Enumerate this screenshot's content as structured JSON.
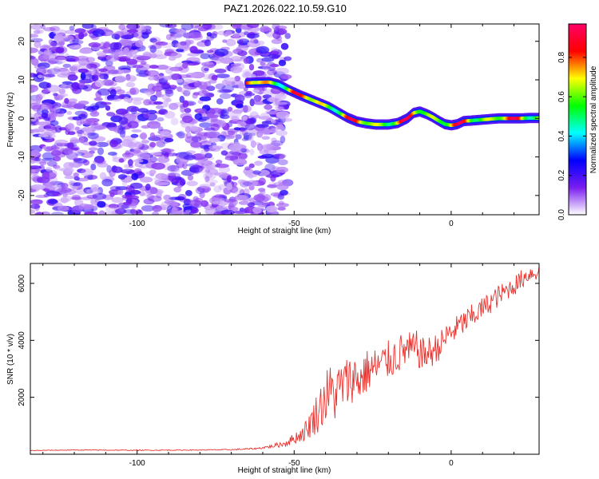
{
  "title": "PAZ1.2026.022.10.59.G10",
  "chart_data": [
    {
      "type": "heatmap",
      "panel": "spectrogram",
      "xlabel": "Height of straight line (km)",
      "ylabel": "Frequency (Hz)",
      "xlim": [
        -134,
        28
      ],
      "ylim": [
        -25,
        24.5
      ],
      "x_ticks": [
        -100,
        -50,
        0
      ],
      "x_tick_labels": [
        "-100",
        "-50",
        "0"
      ],
      "y_ticks": [
        -20,
        -10,
        0,
        10,
        20
      ],
      "y_tick_labels": [
        "-20",
        "-10",
        "0",
        "10",
        "20"
      ],
      "noise_region_x": [
        -134,
        -52
      ],
      "noise_amplitude_range": [
        0.0,
        0.2
      ],
      "ridge_amplitude_range": [
        0.4,
        0.95
      ],
      "ridge": {
        "height_km": [
          -65,
          -62,
          -58,
          -55,
          -52,
          -48,
          -45,
          -42,
          -39,
          -36,
          -33,
          -30,
          -27,
          -24,
          -20,
          -17,
          -14,
          -12,
          -10,
          -8,
          -6,
          -4,
          -2,
          0,
          2,
          4,
          6,
          9,
          12,
          15,
          18,
          22,
          25,
          28
        ],
        "frequency_hz": [
          9.2,
          9.3,
          9.4,
          8.8,
          7.5,
          6.0,
          5.0,
          4.0,
          3.0,
          1.6,
          0.2,
          -0.8,
          -1.3,
          -1.6,
          -1.6,
          -1.2,
          0.0,
          1.4,
          1.8,
          1.2,
          0.4,
          -0.6,
          -1.5,
          -1.8,
          -1.5,
          -0.7,
          -0.6,
          -0.4,
          -0.2,
          0.0,
          0.0,
          0.0,
          0.1,
          0.1
        ]
      },
      "colorbar": {
        "label": "Normalized spectral amplitude",
        "range": [
          0.0,
          0.97
        ],
        "ticks": [
          0.0,
          0.2,
          0.4,
          0.6,
          0.8
        ],
        "tick_labels": [
          "0.0",
          "0.2",
          "0.4",
          "0.6",
          "0.8"
        ],
        "colors": [
          "#ffffff",
          "#7a1df0",
          "#0000ff",
          "#00ffff",
          "#00ff00",
          "#ffff00",
          "#ff0000",
          "#ff0066"
        ]
      }
    },
    {
      "type": "line",
      "panel": "snr",
      "xlabel": "Height of straight line (km)",
      "ylabel": "SNR (10 * v/v)",
      "xlim": [
        -134,
        28
      ],
      "ylim": [
        0,
        6700
      ],
      "x_ticks": [
        -100,
        -50,
        0
      ],
      "x_tick_labels": [
        "-100",
        "-50",
        "0"
      ],
      "y_ticks": [
        2000,
        4000,
        6000
      ],
      "y_tick_labels": [
        "2000",
        "4000",
        "6000"
      ],
      "line_color": "#e8322e",
      "series": [
        {
          "name": "SNR",
          "x": [
            -134,
            -120,
            -100,
            -80,
            -70,
            -62,
            -57,
            -53,
            -50,
            -47,
            -45,
            -43,
            -41,
            -39,
            -37,
            -35,
            -33,
            -31,
            -29,
            -27,
            -25,
            -23,
            -21,
            -19,
            -17,
            -15,
            -13,
            -11,
            -9,
            -7,
            -5,
            -3,
            -1,
            1,
            3,
            5,
            7,
            9,
            11,
            13,
            15,
            17,
            19,
            21,
            23,
            25,
            28
          ],
          "y": [
            130,
            150,
            140,
            150,
            160,
            200,
            280,
            380,
            550,
            750,
            1050,
            1400,
            1800,
            2200,
            2100,
            2400,
            2550,
            2700,
            2600,
            2900,
            3000,
            3100,
            3250,
            3350,
            3500,
            3650,
            3650,
            3700,
            3500,
            3550,
            3700,
            3900,
            4200,
            4350,
            4550,
            4700,
            4850,
            5050,
            5200,
            5400,
            5550,
            5700,
            5850,
            6000,
            6200,
            6350,
            6400
          ],
          "noise_amplitude": [
            10,
            15,
            15,
            15,
            20,
            30,
            60,
            120,
            200,
            300,
            500,
            700,
            900,
            1000,
            1000,
            900,
            900,
            850,
            850,
            800,
            750,
            700,
            700,
            700,
            700,
            650,
            650,
            650,
            600,
            600,
            550,
            500,
            500,
            450,
            450,
            450,
            450,
            400,
            400,
            400,
            400,
            350,
            350,
            350,
            350,
            300,
            300
          ]
        }
      ]
    }
  ]
}
